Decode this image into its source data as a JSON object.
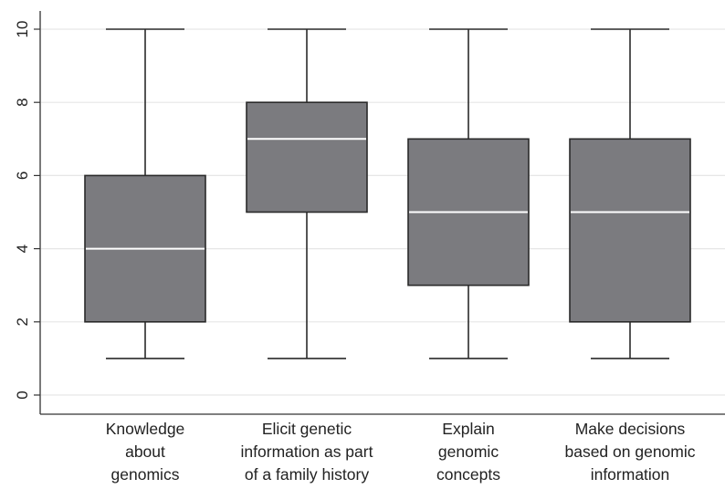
{
  "chart_data": {
    "type": "box",
    "title": "",
    "xlabel": "",
    "ylabel": "",
    "ylim": [
      0,
      10
    ],
    "yticks": [
      "0",
      "2",
      "4",
      "6",
      "8",
      "10"
    ],
    "grid": true,
    "categories": [
      [
        "Knowledge",
        "about",
        "genomics"
      ],
      [
        "Elicit genetic",
        "information as part",
        "of a family history"
      ],
      [
        "Explain",
        "genomic",
        "concepts"
      ],
      [
        "Make decisions",
        "based on genomic",
        "information"
      ]
    ],
    "boxes": [
      {
        "min": 1,
        "q1": 2,
        "median": 4,
        "q3": 6,
        "max": 10
      },
      {
        "min": 1,
        "q1": 5,
        "median": 7,
        "q3": 8,
        "max": 10
      },
      {
        "min": 1,
        "q1": 3,
        "median": 5,
        "q3": 7,
        "max": 10
      },
      {
        "min": 1,
        "q1": 2,
        "median": 5,
        "q3": 7,
        "max": 10
      }
    ],
    "colors": {
      "box_fill": "#7b7b7f",
      "box_stroke": "#2a2a2a",
      "median": "#ffffff",
      "whisker": "#2a2a2a",
      "grid": "#e6e6e6",
      "axis": "#333333"
    }
  }
}
